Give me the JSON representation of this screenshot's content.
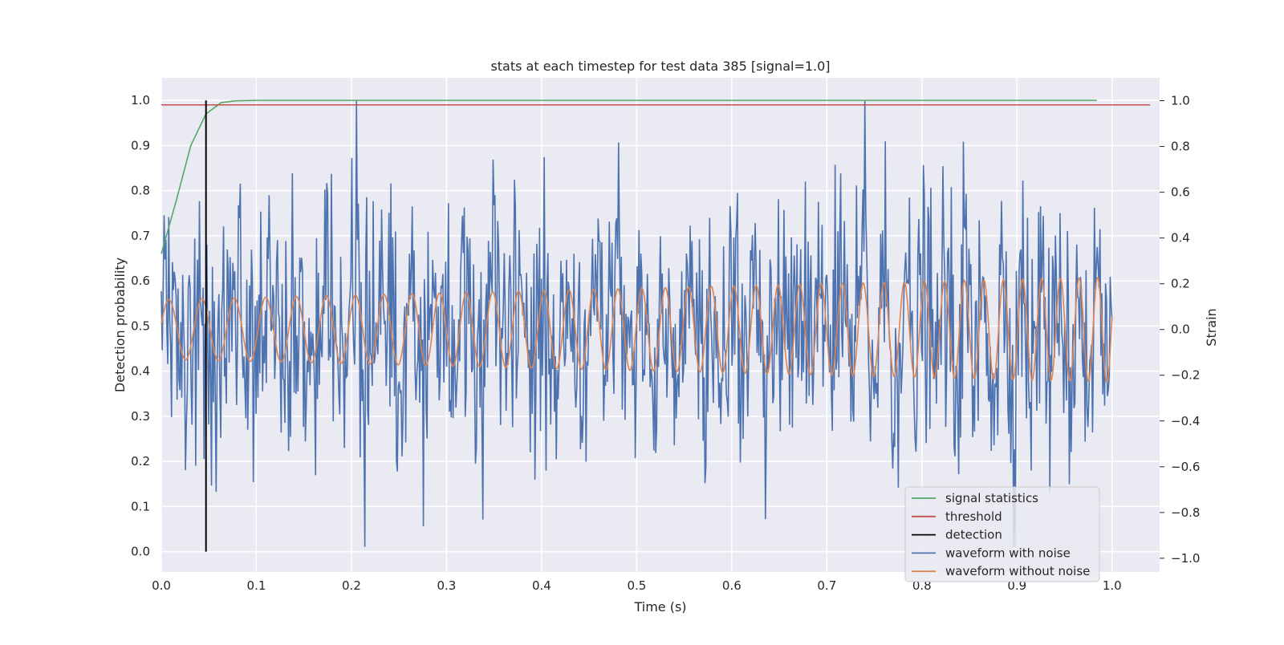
{
  "chart_data": {
    "type": "line",
    "title": "stats at each timestep for test data 385 [signal=1.0]",
    "xlabel": "Time (s)",
    "ylabel_left": "Detection probability",
    "ylabel_right": "Strain",
    "xlim": [
      0.0,
      1.05
    ],
    "ylim_left": [
      -0.045,
      1.05
    ],
    "ylim_right": [
      -1.06,
      1.1
    ],
    "x_ticks": [
      "0.0",
      "0.1",
      "0.2",
      "0.3",
      "0.4",
      "0.5",
      "0.6",
      "0.7",
      "0.8",
      "0.9",
      "1.0"
    ],
    "y_left_ticks": [
      "0.0",
      "0.1",
      "0.2",
      "0.3",
      "0.4",
      "0.5",
      "0.6",
      "0.7",
      "0.8",
      "0.9",
      "1.0"
    ],
    "y_right_ticks": [
      "−1.0",
      "−0.8",
      "−0.6",
      "−0.4",
      "−0.2",
      "0.0",
      "0.2",
      "0.4",
      "0.6",
      "0.8",
      "1.0"
    ],
    "grid": true,
    "legend_position": "lower-right",
    "series": [
      {
        "name": "signal statistics",
        "axis": "left",
        "color": "#55a868",
        "x": [
          0.0,
          0.016,
          0.031,
          0.047,
          0.063,
          0.078,
          0.1,
          0.2,
          0.3,
          0.4,
          0.5,
          0.6,
          0.7,
          0.8,
          0.9,
          0.984
        ],
        "y": [
          0.66,
          0.78,
          0.9,
          0.97,
          0.995,
          0.999,
          1.0,
          1.0,
          1.0,
          1.0,
          1.0,
          1.0,
          1.0,
          1.0,
          1.0,
          1.0
        ]
      },
      {
        "name": "threshold",
        "axis": "left",
        "color": "#c44e52",
        "x": [
          0.0,
          1.04
        ],
        "y": [
          0.99,
          0.99
        ]
      },
      {
        "name": "detection",
        "axis": "left",
        "color": "#000000",
        "x": [
          0.047,
          0.047
        ],
        "y": [
          0.0,
          1.0
        ]
      },
      {
        "name": "waveform with noise",
        "axis": "right",
        "color": "#4c72b0",
        "x_start": 0.0,
        "x_end": 1.0,
        "amplitude_std": 0.28,
        "min": -0.95,
        "max": 1.0,
        "peak_x": 0.74,
        "peak_y": 1.0
      },
      {
        "name": "waveform without noise",
        "axis": "right",
        "color": "#dd8452",
        "x_start": 0.0,
        "x_end": 1.0,
        "amp_start": 0.13,
        "amp_end": 0.23,
        "freq_start_hz": 28,
        "freq_end_hz": 52
      }
    ]
  }
}
